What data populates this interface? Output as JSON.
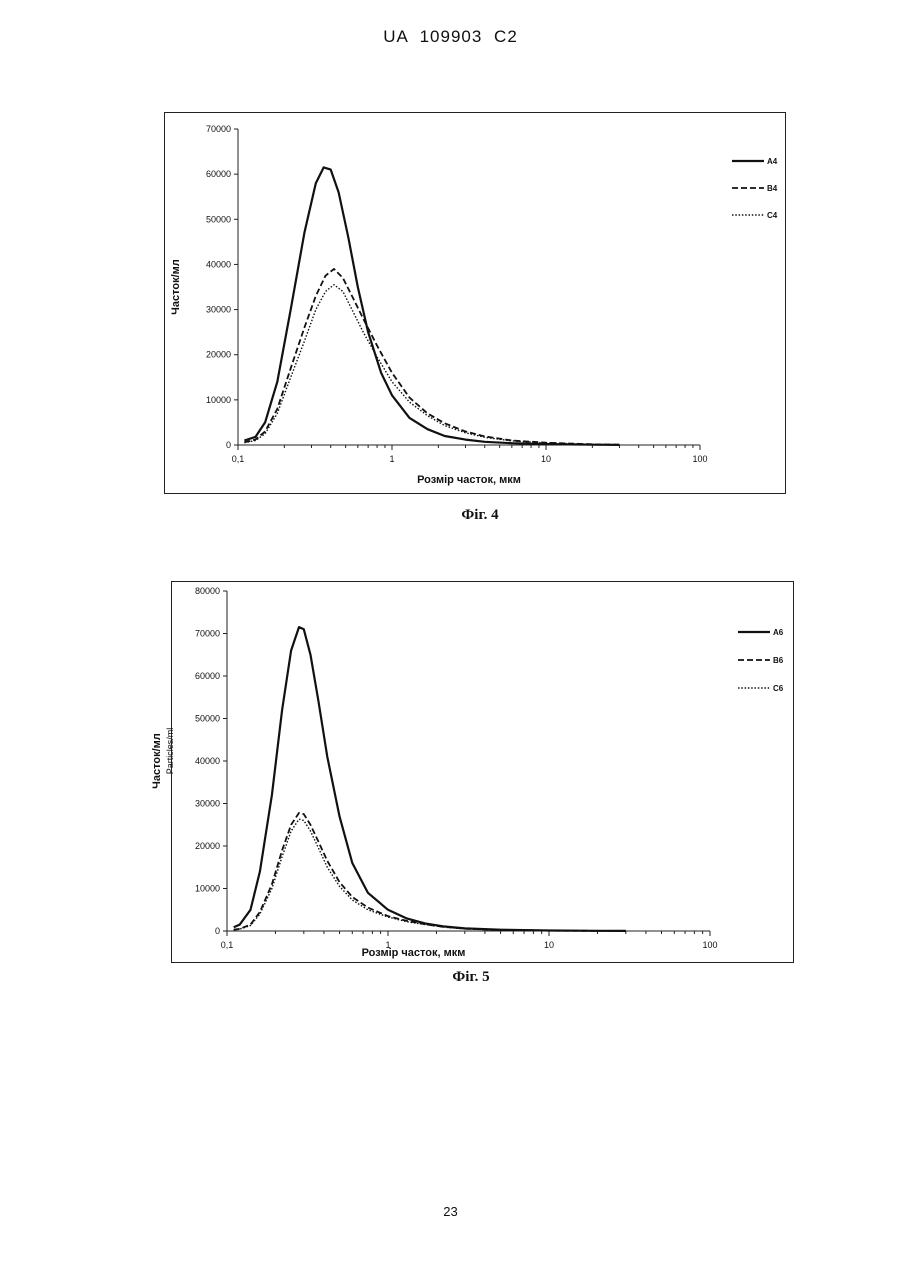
{
  "header": "UA   109903   C2",
  "page_number": "23",
  "chart_data": [
    {
      "type": "line",
      "caption": "Фіг. 4",
      "xlabel": "Розмір часток, мкм",
      "ylabel": "Часток/мл",
      "x_scale": "log",
      "xlim": [
        0.1,
        100
      ],
      "ylim": [
        0,
        70000
      ],
      "x_ticks": [
        "0,1",
        "1",
        "10",
        "100"
      ],
      "y_ticks": [
        "0",
        "10000",
        "20000",
        "30000",
        "40000",
        "50000",
        "60000",
        "70000"
      ],
      "legend_position": "top-right",
      "series": [
        {
          "name": "A4",
          "style": "solid",
          "x": [
            0.11,
            0.13,
            0.15,
            0.18,
            0.22,
            0.27,
            0.32,
            0.36,
            0.4,
            0.45,
            0.52,
            0.6,
            0.7,
            0.85,
            1.0,
            1.3,
            1.7,
            2.2,
            3,
            4,
            6,
            10,
            20,
            30
          ],
          "y": [
            1000,
            1800,
            5000,
            14000,
            30000,
            47000,
            58000,
            61500,
            61000,
            56000,
            46000,
            35000,
            25000,
            16000,
            11000,
            6000,
            3500,
            2000,
            1200,
            700,
            400,
            200,
            60,
            30
          ]
        },
        {
          "name": "B4",
          "style": "dashed",
          "x": [
            0.11,
            0.13,
            0.15,
            0.18,
            0.22,
            0.27,
            0.32,
            0.37,
            0.42,
            0.48,
            0.55,
            0.65,
            0.8,
            1.0,
            1.3,
            1.7,
            2.2,
            3,
            4,
            6,
            10,
            20,
            30
          ],
          "y": [
            600,
            1200,
            3000,
            8000,
            17000,
            26000,
            33000,
            37500,
            39000,
            37000,
            33000,
            28000,
            22000,
            16000,
            10500,
            7000,
            4800,
            3000,
            1900,
            1000,
            500,
            150,
            60
          ]
        },
        {
          "name": "C4",
          "style": "dotted",
          "x": [
            0.11,
            0.13,
            0.15,
            0.18,
            0.22,
            0.27,
            0.32,
            0.37,
            0.42,
            0.48,
            0.55,
            0.65,
            0.8,
            1.0,
            1.3,
            1.7,
            2.2,
            3,
            4,
            6,
            10,
            20,
            30
          ],
          "y": [
            500,
            1000,
            2500,
            7000,
            15000,
            23000,
            30000,
            34000,
            35500,
            34000,
            30000,
            25000,
            19500,
            14000,
            9500,
            6500,
            4300,
            2700,
            1700,
            900,
            450,
            140,
            50
          ]
        }
      ]
    },
    {
      "type": "line",
      "caption": "Фіг. 5",
      "xlabel": "Розмір часток, мкм",
      "ylabel": "Часток/мл",
      "ylabel_overlay": "Particles/ml",
      "x_scale": "log",
      "xlim": [
        0.1,
        100
      ],
      "ylim": [
        0,
        80000
      ],
      "x_ticks": [
        "0,1",
        "1",
        "10",
        "100"
      ],
      "y_ticks": [
        "0",
        "10000",
        "20000",
        "30000",
        "40000",
        "50000",
        "60000",
        "70000",
        "80000"
      ],
      "legend_position": "top-right",
      "series": [
        {
          "name": "A6",
          "style": "solid",
          "x": [
            0.11,
            0.12,
            0.14,
            0.16,
            0.19,
            0.22,
            0.25,
            0.28,
            0.3,
            0.33,
            0.37,
            0.42,
            0.5,
            0.6,
            0.75,
            1.0,
            1.3,
            1.7,
            2.2,
            3,
            5,
            10,
            20,
            30
          ],
          "y": [
            900,
            1500,
            5000,
            14000,
            32000,
            52000,
            66000,
            71500,
            71000,
            65000,
            54000,
            41000,
            27000,
            16000,
            9000,
            5000,
            3000,
            1800,
            1100,
            600,
            300,
            120,
            40,
            20
          ]
        },
        {
          "name": "B6",
          "style": "dashed",
          "x": [
            0.11,
            0.12,
            0.14,
            0.16,
            0.19,
            0.22,
            0.25,
            0.28,
            0.3,
            0.33,
            0.37,
            0.42,
            0.5,
            0.6,
            0.75,
            1.0,
            1.3,
            1.7,
            2.2,
            3,
            5,
            10,
            20,
            30
          ],
          "y": [
            300,
            500,
            1500,
            4500,
            11000,
            19000,
            25000,
            27800,
            27500,
            25000,
            21000,
            16500,
            11500,
            8000,
            5500,
            3500,
            2400,
            1600,
            1000,
            550,
            250,
            100,
            30,
            15
          ]
        },
        {
          "name": "C6",
          "style": "dotted",
          "x": [
            0.11,
            0.12,
            0.14,
            0.16,
            0.19,
            0.22,
            0.25,
            0.28,
            0.3,
            0.33,
            0.37,
            0.42,
            0.5,
            0.6,
            0.75,
            1.0,
            1.3,
            1.7,
            2.2,
            3,
            5,
            10,
            20,
            30
          ],
          "y": [
            250,
            450,
            1300,
            4000,
            10000,
            17500,
            23500,
            26300,
            26000,
            23500,
            19500,
            15000,
            10500,
            7300,
            5000,
            3300,
            2200,
            1500,
            950,
            500,
            230,
            90,
            30,
            15
          ]
        }
      ]
    }
  ]
}
